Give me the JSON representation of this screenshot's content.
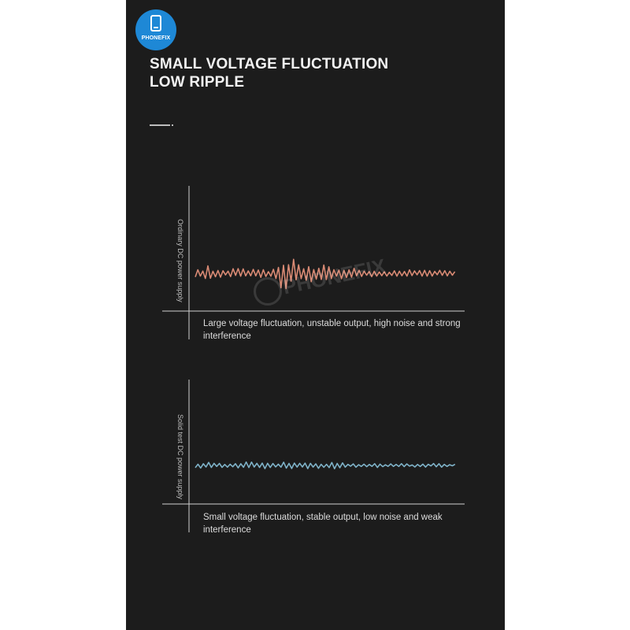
{
  "logo": {
    "text": "PHONEFIX",
    "color": "#1e88d6"
  },
  "title": {
    "line1": "SMALL VOLTAGE FLUCTUATION",
    "line2": "LOW RIPPLE"
  },
  "watermark": {
    "text": "PHONEFIX"
  },
  "ordinary": {
    "ylabel": "Ordinary DC power supply",
    "caption": "Large voltage fluctuation, unstable output, high noise and strong interference",
    "wave_color": "#d98a74"
  },
  "solid": {
    "ylabel": "Solid test DC power supply",
    "caption": "Small voltage fluctuation, stable output, low noise and weak interference",
    "wave_color": "#7fb3c9"
  },
  "colors": {
    "background": "#1c1c1c",
    "axis": "#cfcfcf"
  }
}
